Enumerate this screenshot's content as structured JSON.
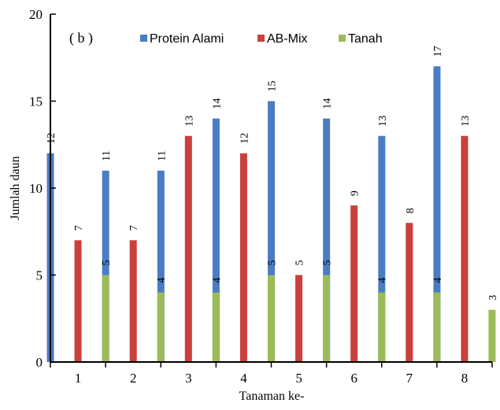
{
  "chart_data": {
    "type": "bar",
    "panel_label": "( b )",
    "xlabel": "Tanaman ke-",
    "ylabel": "Jumlah daun",
    "categories": [
      "1",
      "2",
      "3",
      "4",
      "5",
      "6",
      "7",
      "8"
    ],
    "ylim": [
      0,
      20
    ],
    "yticks": [
      "0",
      "5",
      "10",
      "15",
      "20"
    ],
    "legend_position": "top",
    "grid": false,
    "series": [
      {
        "name": "Protein Alami",
        "color": "#4a7cc4",
        "values": [
          12,
          11,
          11,
          14,
          15,
          14,
          13,
          17
        ]
      },
      {
        "name": "AB-Mix",
        "color": "#c9403c",
        "values": [
          7,
          7,
          13,
          12,
          5,
          9,
          8,
          13
        ]
      },
      {
        "name": "Tanah",
        "color": "#9bbb59",
        "values": [
          5,
          4,
          4,
          5,
          5,
          4,
          4,
          3
        ]
      }
    ]
  }
}
